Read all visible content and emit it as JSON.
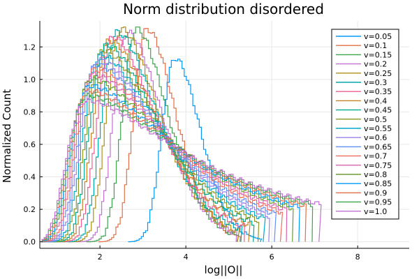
{
  "chart_data": {
    "type": "line",
    "subtype": "step-histogram",
    "title": "Norm distribution disordered",
    "xlabel": "log||O||",
    "ylabel": "Normalized Count",
    "xlim": [
      0.6,
      9.2
    ],
    "ylim": [
      -0.04,
      1.36
    ],
    "xticks": [
      2,
      4,
      6,
      8
    ],
    "yticks": [
      0.0,
      0.2,
      0.4,
      0.6,
      0.8,
      1.0,
      1.2
    ],
    "ytick_labels": [
      "0.0",
      "0.2",
      "0.4",
      "0.6",
      "0.8",
      "1.0",
      "1.2"
    ],
    "grid": true,
    "legend_position": "top-right",
    "series": [
      {
        "name": "v=0.05",
        "color": "#009AFA",
        "mode": 3.75,
        "peak": 1.13
      },
      {
        "name": "v=0.1",
        "color": "#E36F47",
        "mode": 3.1,
        "peak": 1.31
      },
      {
        "name": "v=0.15",
        "color": "#3EA44E",
        "mode": 2.85,
        "peak": 1.31
      },
      {
        "name": "v=0.2",
        "color": "#C371D2",
        "mode": 2.65,
        "peak": 1.29
      },
      {
        "name": "v=0.25",
        "color": "#AC8E18",
        "mode": 2.5,
        "peak": 1.31
      },
      {
        "name": "v=0.3",
        "color": "#00A9AD",
        "mode": 2.4,
        "peak": 1.29
      },
      {
        "name": "v=0.35",
        "color": "#ED5E93",
        "mode": 2.3,
        "peak": 1.26
      },
      {
        "name": "v=0.4",
        "color": "#C68225",
        "mode": 2.22,
        "peak": 1.24
      },
      {
        "name": "v=0.45",
        "color": "#00A98D",
        "mode": 2.15,
        "peak": 1.21
      },
      {
        "name": "v=0.5",
        "color": "#8E971E",
        "mode": 2.08,
        "peak": 1.18
      },
      {
        "name": "v=0.55",
        "color": "#00A8CB",
        "mode": 2.02,
        "peak": 1.15
      },
      {
        "name": "v=0.6",
        "color": "#9B7FE9",
        "mode": 1.97,
        "peak": 1.12
      },
      {
        "name": "v=0.65",
        "color": "#618DF6",
        "mode": 1.92,
        "peak": 1.09
      },
      {
        "name": "v=0.7",
        "color": "#F16C5C",
        "mode": 1.88,
        "peak": 1.06
      },
      {
        "name": "v=0.75",
        "color": "#DC63AF",
        "mode": 1.84,
        "peak": 1.03
      },
      {
        "name": "v=0.8",
        "color": "#6B9E32",
        "mode": 1.8,
        "peak": 1.0
      },
      {
        "name": "v=0.85",
        "color": "#009AFA",
        "mode": 1.77,
        "peak": 0.96
      },
      {
        "name": "v=0.9",
        "color": "#E36F47",
        "mode": 1.74,
        "peak": 0.93
      },
      {
        "name": "v=0.95",
        "color": "#3EA44E",
        "mode": 1.72,
        "peak": 0.9
      },
      {
        "name": "v=1.0",
        "color": "#C371D2",
        "mode": 1.7,
        "peak": 0.87
      }
    ]
  }
}
